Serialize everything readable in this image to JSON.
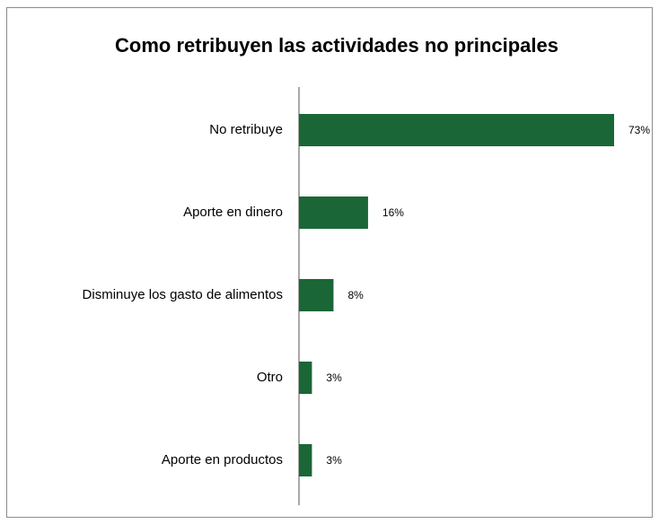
{
  "chart_data": {
    "type": "bar",
    "orientation": "horizontal",
    "title": "Como retribuyen las actividades no principales",
    "categories": [
      "No retribuye",
      "Aporte en dinero",
      "Disminuye los gasto de alimentos",
      "Otro",
      "Aporte en productos"
    ],
    "values": [
      73,
      16,
      8,
      3,
      3
    ],
    "value_labels": [
      "73%",
      "16%",
      "8%",
      "3%",
      "3%"
    ],
    "color": "#1b6637"
  }
}
